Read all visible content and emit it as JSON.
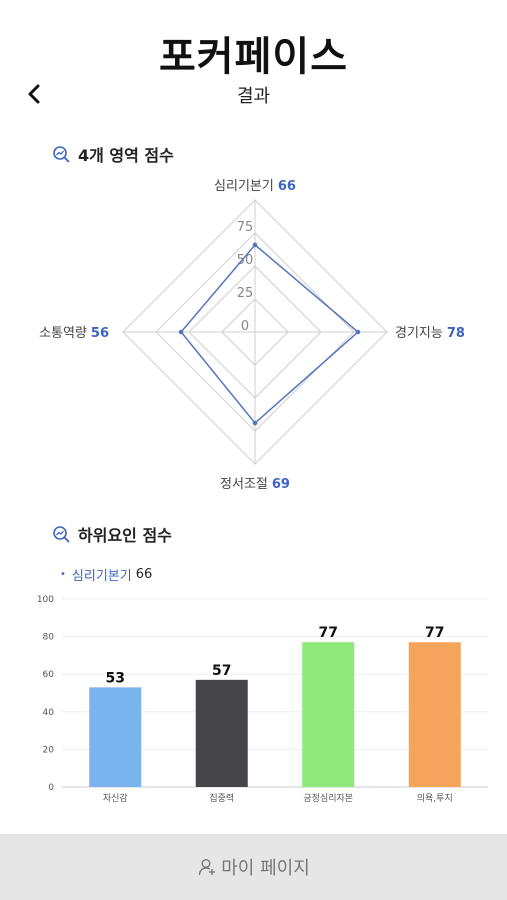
{
  "header": {
    "app_title": "포커페이스",
    "page_title": "결과",
    "back_icon": "chevron-left-icon"
  },
  "radar_section": {
    "title": "4개 영역 점수",
    "icon": "search-chart-icon"
  },
  "subfactor_section": {
    "title": "하위요인 점수",
    "icon": "search-chart-icon",
    "legend_bullet": "•",
    "legend_name": "심리기본기",
    "legend_value": "66"
  },
  "bottom_nav": {
    "label": "마이 페이지",
    "icon": "user-plus-icon"
  },
  "colors": {
    "accent": "#3c64c4",
    "radar_line": "#5575c0",
    "grid": "#cfcfcf",
    "bottom_bar": "#e6e6e6"
  },
  "chart_data": [
    {
      "type": "radar",
      "axes": [
        "심리기본기",
        "경기지능",
        "정서조절",
        "소통역량"
      ],
      "values": [
        66,
        78,
        69,
        56
      ],
      "value_labels": [
        "66",
        "78",
        "69",
        "56"
      ],
      "range": [
        0,
        100
      ],
      "ticks": [
        "0",
        "25",
        "50",
        "75"
      ]
    },
    {
      "type": "bar",
      "categories": [
        "자신감",
        "집중력",
        "긍정심리자본",
        "의욕,투지"
      ],
      "values": [
        53,
        57,
        77,
        77
      ],
      "value_labels": [
        "53",
        "57",
        "77",
        "77"
      ],
      "colors": [
        "#7ab3ee",
        "#454549",
        "#8ee87a",
        "#f6a35c"
      ],
      "ylim": [
        0,
        100
      ],
      "yticks": [
        "0",
        "20",
        "40",
        "60",
        "80",
        "100"
      ],
      "grid": true
    }
  ]
}
